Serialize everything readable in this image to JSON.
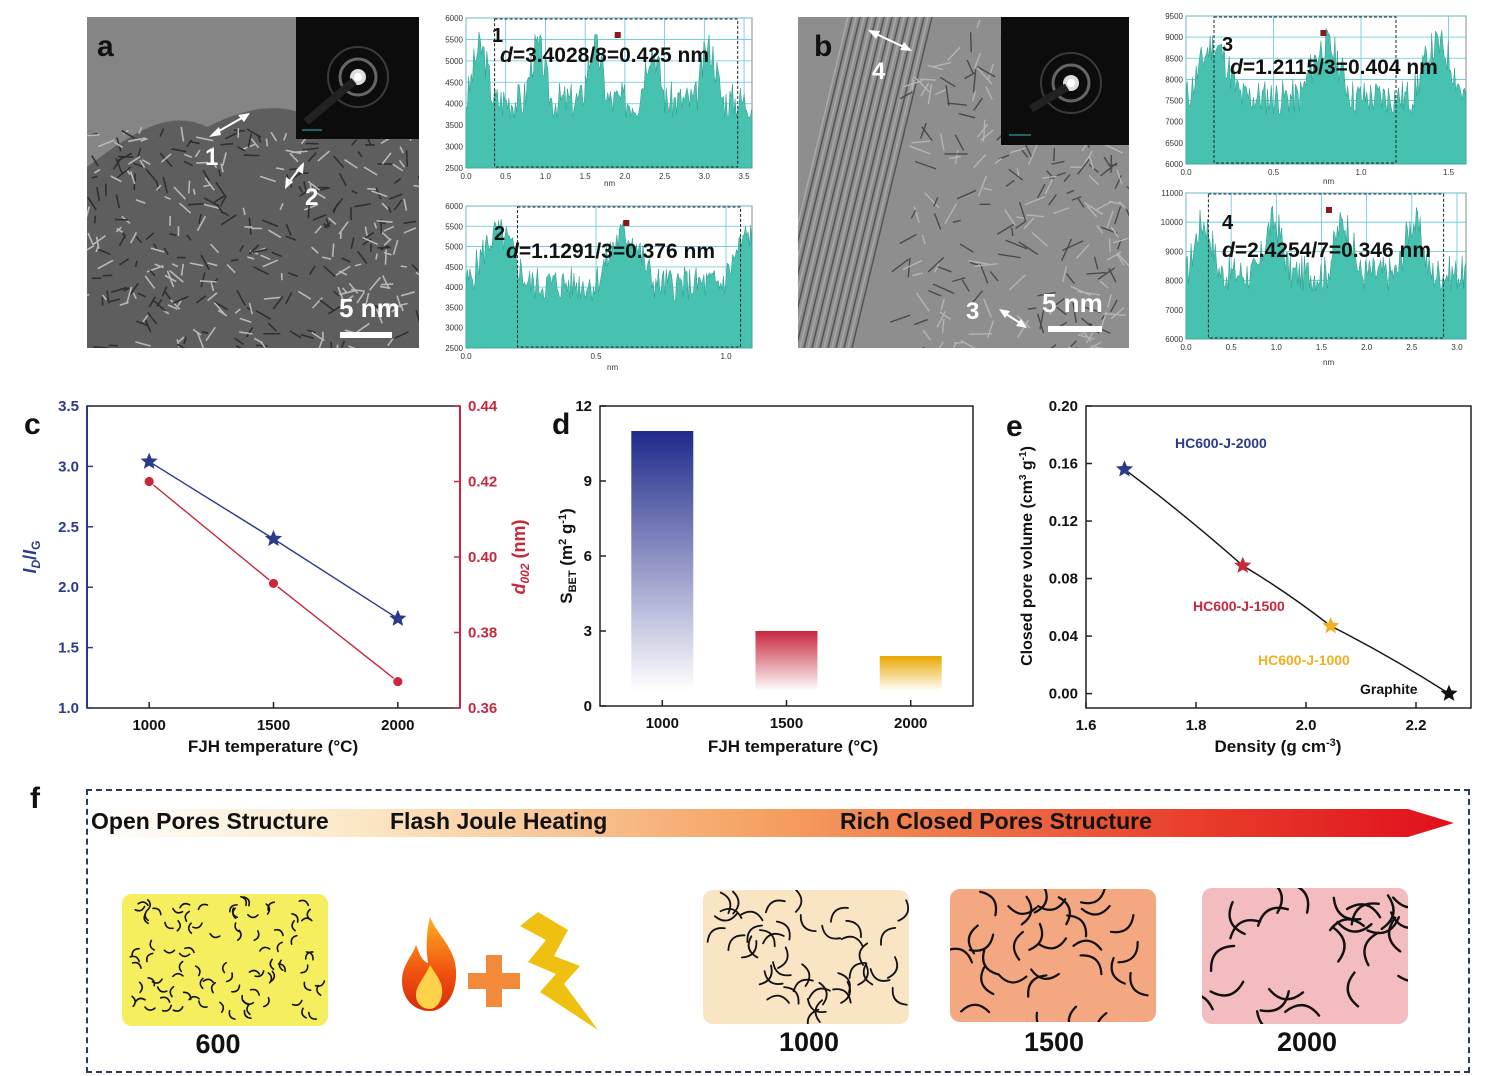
{
  "panels": {
    "a": "a",
    "b": "b",
    "c": "c",
    "d": "d",
    "e": "e",
    "f": "f"
  },
  "tem_a": {
    "scale_label": "5 nm",
    "markers": [
      "1",
      "2"
    ],
    "profiles": [
      {
        "id": "1",
        "formula_prefix": "d",
        "formula_rest": "=3.4028/8=0.425 nm",
        "xlabel": "nm",
        "yticks": [
          "6000",
          "5500",
          "5000",
          "4500",
          "4000",
          "3500",
          "3000",
          "2500"
        ],
        "xticks": [
          "0.0",
          "0.5",
          "1.0",
          "1.5",
          "2.0",
          "2.5",
          "3.0",
          "3.5"
        ]
      },
      {
        "id": "2",
        "formula_prefix": "d",
        "formula_rest": "=1.1291/3=0.376 nm",
        "xlabel": "nm",
        "yticks": [
          "6000",
          "5500",
          "5000",
          "4500",
          "4000",
          "3500",
          "3000",
          "2500"
        ],
        "xticks": [
          "0.0",
          "0.5",
          "1.0"
        ]
      }
    ]
  },
  "tem_b": {
    "scale_label": "5 nm",
    "markers": [
      "4",
      "3"
    ],
    "profiles": [
      {
        "id": "3",
        "formula_prefix": "d",
        "formula_rest": "=1.2115/3=0.404 nm",
        "xlabel": "nm",
        "yticks": [
          "9500",
          "9000",
          "8500",
          "8000",
          "7500",
          "7000",
          "6500",
          "6000"
        ],
        "xticks": [
          "0.0",
          "0.5",
          "1.0",
          "1.5"
        ]
      },
      {
        "id": "4",
        "formula_prefix": "d",
        "formula_rest": "=2.4254/7=0.346 nm",
        "xlabel": "nm",
        "yticks": [
          "11000",
          "10000",
          "9000",
          "8000",
          "7000",
          "6000"
        ],
        "xticks": [
          "0.0",
          "0.5",
          "1.0",
          "1.5",
          "2.0",
          "2.5",
          "3.0"
        ]
      }
    ]
  },
  "chart_data": [
    {
      "panel": "c",
      "type": "line",
      "x": [
        1000,
        1500,
        2000
      ],
      "xlabel": "FJH temperature (°C)",
      "xlim": [
        750,
        2250
      ],
      "xticks": [
        "1000",
        "1500",
        "2000"
      ],
      "ylabel_left": "ID/IG",
      "ylabel_right": "d002 (nm)",
      "ylim_left": [
        1.0,
        3.5
      ],
      "ylim_right": [
        0.36,
        0.44
      ],
      "yticks_left": [
        "1.0",
        "1.5",
        "2.0",
        "2.5",
        "3.0",
        "3.5"
      ],
      "yticks_right": [
        "0.36",
        "0.38",
        "0.40",
        "0.42",
        "0.44"
      ],
      "series": [
        {
          "axis": "left",
          "marker": "star",
          "color": "#2b3a8c",
          "values": [
            3.04,
            2.4,
            1.74
          ]
        },
        {
          "axis": "right",
          "marker": "circle",
          "color": "#c8283c",
          "values": [
            0.42,
            0.393,
            0.367
          ]
        }
      ]
    },
    {
      "panel": "d",
      "type": "bar",
      "categories": [
        "1000",
        "1500",
        "2000"
      ],
      "values": [
        11,
        3,
        2
      ],
      "colors": [
        "#1f2a8a",
        "#c8283c",
        "#e8a800"
      ],
      "xlabel": "FJH temperature (°C)",
      "ylabel": "SBET (m2 g-1)",
      "ylim": [
        0,
        12
      ],
      "yticks": [
        "0",
        "3",
        "6",
        "9",
        "12"
      ]
    },
    {
      "panel": "e",
      "type": "scatter",
      "x": [
        1.67,
        1.885,
        2.045,
        2.26
      ],
      "y": [
        0.156,
        0.089,
        0.047,
        0.0
      ],
      "labels": [
        "HC600-J-2000",
        "HC600-J-1500",
        "HC600-J-1000",
        "Graphite"
      ],
      "colors": [
        "#2b3a8c",
        "#c8283c",
        "#f0b020",
        "#111111"
      ],
      "xlabel": "Density (g cm-3)",
      "ylabel": "Closed pore volume (cm3 g-1)",
      "xlim": [
        1.6,
        2.3
      ],
      "ylim": [
        -0.01,
        0.2
      ],
      "xticks": [
        "1.6",
        "1.8",
        "2.0",
        "2.2"
      ],
      "yticks": [
        "0.00",
        "0.04",
        "0.08",
        "0.12",
        "0.16",
        "0.20"
      ]
    }
  ],
  "schematic": {
    "banner_texts": [
      "Open Pores Structure",
      "Flash Joule Heating",
      "Rich Closed Pores Structure"
    ],
    "labels": [
      "600",
      "1000",
      "1500",
      "2000"
    ],
    "fill_colors": [
      "#f5ef60",
      "#f9e4c4",
      "#f4a882",
      "#f3bcbf"
    ]
  }
}
